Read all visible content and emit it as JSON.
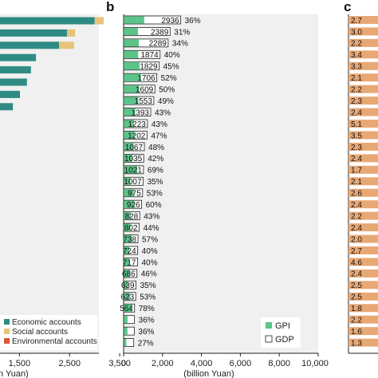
{
  "panels": {
    "a": {
      "legend": [
        "Economic accounts",
        "Social accounts",
        "Environmental accounts"
      ],
      "xtick_labels": [
        "1,500",
        "2,500",
        "3,500"
      ],
      "xlabel_fragment": "n Yuan)",
      "colors": {
        "economic": "#2e8b84",
        "social": "#e8c27a",
        "environmental": "#d9573a"
      }
    },
    "b": {
      "label": "b",
      "xlabel": "(billion Yuan)",
      "legend": {
        "gpi": "GPI",
        "gdp": "GDP"
      },
      "colors": {
        "gpi": "#5cc489",
        "gdp": "#ffffff",
        "edge": "#222222"
      }
    },
    "c": {
      "label": "c",
      "color": "#e8a874"
    }
  },
  "chart_data": [
    {
      "panel": "a",
      "type": "bar",
      "orientation": "horizontal",
      "stacked": true,
      "xlim": [
        500,
        3500
      ],
      "xticks": [
        1500,
        2500,
        3500
      ],
      "series": [
        {
          "name": "Economic accounts",
          "values": [
            3000,
            2450,
            2290,
            1830,
            1730,
            1650,
            1510,
            1370
          ]
        },
        {
          "name": "Social accounts",
          "values": [
            180,
            160,
            300,
            0,
            0,
            0,
            0,
            0
          ]
        },
        {
          "name": "Environmental accounts",
          "values": [
            0,
            0,
            0,
            0,
            0,
            0,
            0,
            0
          ]
        }
      ],
      "ylabel": "",
      "grid": false,
      "legend_position": "bottom-right"
    },
    {
      "panel": "b",
      "type": "bar",
      "orientation": "horizontal",
      "xlim": [
        0,
        10000
      ],
      "xticks": [
        0,
        2000,
        4000,
        6000,
        8000,
        10000
      ],
      "xtick_labels": [
        "0",
        "2,000",
        "4,000",
        "6,000",
        "8,000",
        "10,000"
      ],
      "xlabel": "(billion Yuan)",
      "gdp": [
        2936,
        2389,
        2289,
        1874,
        1829,
        1706,
        1609,
        1553,
        1393,
        1223,
        1202,
        1067,
        1035,
        1021,
        1007,
        975,
        926,
        828,
        802,
        738,
        724,
        717,
        686,
        639,
        623,
        564,
        560,
        550,
        520
      ],
      "gdp_labels": [
        "2936",
        "2389",
        "2289",
        "1874",
        "1829",
        "1706",
        "1609",
        "1553",
        "1393",
        "1223",
        "1202",
        "1067",
        "1035",
        "1021",
        "1007",
        "975",
        "926",
        "828",
        "802",
        "738",
        "724",
        "717",
        "686",
        "639",
        "623",
        "564",
        "",
        "",
        ""
      ],
      "gpi_share": [
        36,
        31,
        34,
        40,
        45,
        52,
        50,
        49,
        43,
        43,
        47,
        48,
        42,
        69,
        35,
        53,
        60,
        43,
        44,
        57,
        40,
        40,
        46,
        35,
        53,
        78,
        36,
        36,
        27
      ],
      "gpi_share_labels": [
        "36%",
        "31%",
        "34%",
        "40%",
        "45%",
        "52%",
        "50%",
        "49%",
        "43%",
        "43%",
        "47%",
        "48%",
        "42%",
        "69%",
        "35%",
        "53%",
        "60%",
        "43%",
        "44%",
        "57%",
        "40%",
        "40%",
        "46%",
        "35%",
        "53%",
        "78%",
        "36%",
        "36%",
        "27%"
      ],
      "series": [
        {
          "name": "GPI"
        },
        {
          "name": "GDP"
        }
      ],
      "legend_position": "bottom-right",
      "grid": false
    },
    {
      "panel": "c",
      "type": "bar",
      "orientation": "horizontal",
      "value_labels": [
        "2.7",
        "3.0",
        "2.2",
        "3.4",
        "3.3",
        "2.1",
        "2.2",
        "2.3",
        "2.4",
        "5.1",
        "3.5",
        "2.3",
        "2.4",
        "1.7",
        "2.1",
        "2.6",
        "2.4",
        "2.2",
        "2.4",
        "2.0",
        "2.7",
        "4.6",
        "2.4",
        "2.5",
        "2.5",
        "1.8",
        "2.2",
        "1.6",
        "1.3"
      ],
      "grid": false
    }
  ]
}
